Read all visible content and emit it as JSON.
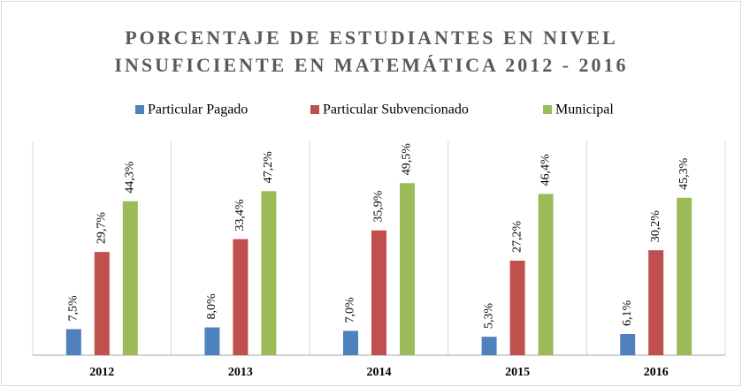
{
  "chart_data": {
    "type": "bar",
    "title": [
      "PORCENTAJE DE ESTUDIANTES EN NIVEL",
      "INSUFICIENTE EN MATEMÁTICA 2012 - 2016"
    ],
    "categories": [
      "2012",
      "2013",
      "2014",
      "2015",
      "2016"
    ],
    "series": [
      {
        "name": "Particular Pagado",
        "color": "#4f81bd",
        "values": [
          7.5,
          8.0,
          7.0,
          5.3,
          6.1
        ],
        "value_labels": [
          "7,5%",
          "8,0%",
          "7,0%",
          "5,3%",
          "6,1%"
        ]
      },
      {
        "name": "Particular Subvencionado",
        "color": "#c0504d",
        "values": [
          29.7,
          33.4,
          35.9,
          27.2,
          30.2
        ],
        "value_labels": [
          "29,7%",
          "33,4%",
          "35,9%",
          "27,2%",
          "30,2%"
        ]
      },
      {
        "name": "Municipal",
        "color": "#9bbb59",
        "values": [
          44.3,
          47.2,
          49.5,
          46.4,
          45.3
        ],
        "value_labels": [
          "44,3%",
          "47,2%",
          "49,5%",
          "46,4%",
          "45,3%"
        ]
      }
    ],
    "ylim": [
      0,
      60
    ],
    "legend": "top"
  }
}
